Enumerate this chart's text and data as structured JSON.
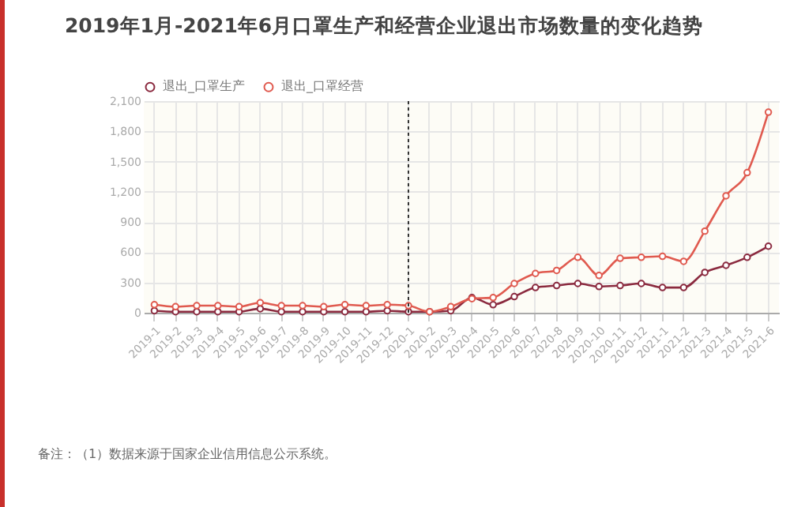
{
  "chart_data": {
    "type": "line",
    "title": "2019年1月-2021年6月口罩生产和经营企业退出市场数量的变化趋势",
    "categories": [
      "2019-1",
      "2019-2",
      "2019-3",
      "2019-4",
      "2019-5",
      "2019-6",
      "2019-7",
      "2019-8",
      "2019-9",
      "2019-10",
      "2019-11",
      "2019-12",
      "2020-1",
      "2020-2",
      "2020-3",
      "2020-4",
      "2020-5",
      "2020-6",
      "2020-7",
      "2020-8",
      "2020-9",
      "2020-10",
      "2020-11",
      "2020-12",
      "2021-1",
      "2021-2",
      "2021-3",
      "2021-4",
      "2021-5",
      "2021-6"
    ],
    "series": [
      {
        "name": "退出_口罩生产",
        "color": "#8b2a3f",
        "values": [
          20,
          10,
          10,
          10,
          10,
          40,
          10,
          10,
          10,
          10,
          10,
          20,
          10,
          10,
          20,
          150,
          80,
          160,
          250,
          270,
          290,
          260,
          270,
          290,
          250,
          250,
          400,
          470,
          550,
          660
        ]
      },
      {
        "name": "退出_口罩经营",
        "color": "#e05a4f",
        "values": [
          80,
          60,
          70,
          70,
          60,
          100,
          70,
          70,
          60,
          80,
          70,
          80,
          70,
          10,
          60,
          140,
          150,
          290,
          390,
          420,
          550,
          370,
          540,
          550,
          560,
          510,
          810,
          1160,
          1390,
          1990
        ]
      }
    ],
    "ylim": [
      0,
      2100
    ],
    "yticks": [
      0,
      300,
      600,
      900,
      {
        "value": 1200,
        "label": "1,200"
      },
      {
        "value": 1500,
        "label": "1,500"
      },
      {
        "value": 1800,
        "label": "1,800"
      },
      {
        "value": 2100,
        "label": "2,100"
      }
    ],
    "grid": true,
    "legend": "top",
    "marker": "circle",
    "line_style": "solid",
    "ref_lines": [
      {
        "axis": "x",
        "value": "2020-1",
        "color": "#333333",
        "line_style": "dotted"
      }
    ],
    "annotations": [
      "备注：（1）数据来源于国家企业信用信息公示系统。"
    ]
  }
}
